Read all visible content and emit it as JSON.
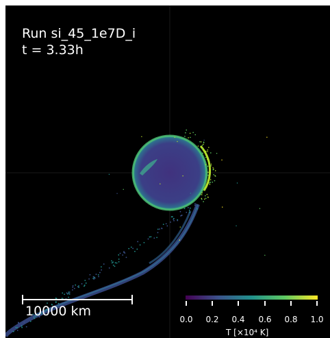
{
  "overlay": {
    "run_title": "Run si_45_1e7D_i",
    "time_label": "t = 3.33h",
    "scale_label": "10000 km"
  },
  "colorbar": {
    "ticks": [
      "0.0",
      "0.2",
      "0.4",
      "0.6",
      "0.8",
      "1.0"
    ],
    "title": "T [×10⁴ K]",
    "colormap": [
      "#440154",
      "#3b528b",
      "#21918c",
      "#5ec962",
      "#fde725"
    ]
  },
  "colors": {
    "background": "#000000",
    "text": "#ffffff"
  }
}
